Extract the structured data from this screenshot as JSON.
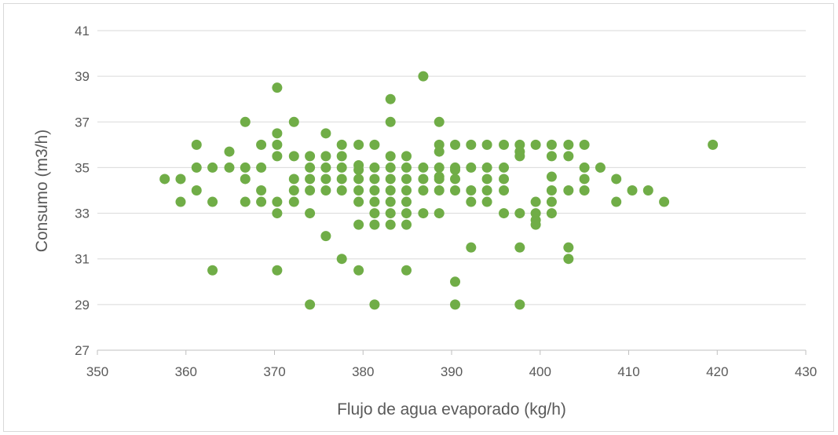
{
  "chart_data": {
    "type": "scatter",
    "title": "",
    "xlabel": "Flujo de agua evaporado  (kg/h)",
    "ylabel": "Consumo  (m3/h)",
    "xlim": [
      350,
      430
    ],
    "ylim": [
      27,
      41
    ],
    "x_ticks": [
      350,
      360,
      370,
      380,
      390,
      400,
      410,
      420,
      430
    ],
    "y_ticks": [
      27,
      29,
      31,
      33,
      35,
      37,
      39,
      41
    ],
    "grid": "horizontal",
    "legend": "none",
    "marker_color": "#70AD47",
    "points": [
      [
        357.6,
        34.5
      ],
      [
        359.4,
        34.5
      ],
      [
        359.4,
        33.5
      ],
      [
        361.2,
        36.0
      ],
      [
        361.2,
        35.0
      ],
      [
        361.2,
        34.0
      ],
      [
        363.0,
        35.0
      ],
      [
        363.0,
        33.5
      ],
      [
        363.0,
        30.5
      ],
      [
        364.9,
        35.7
      ],
      [
        364.9,
        35.0
      ],
      [
        366.7,
        37.0
      ],
      [
        366.7,
        35.0
      ],
      [
        366.7,
        34.5
      ],
      [
        366.7,
        33.5
      ],
      [
        368.5,
        36.0
      ],
      [
        368.5,
        35.0
      ],
      [
        368.5,
        34.0
      ],
      [
        368.5,
        33.5
      ],
      [
        370.3,
        38.5
      ],
      [
        370.3,
        36.5
      ],
      [
        370.3,
        36.0
      ],
      [
        370.3,
        35.5
      ],
      [
        370.3,
        33.5
      ],
      [
        370.3,
        33.0
      ],
      [
        370.3,
        30.5
      ],
      [
        372.2,
        37.0
      ],
      [
        372.2,
        35.5
      ],
      [
        372.2,
        34.5
      ],
      [
        372.2,
        34.0
      ],
      [
        372.2,
        33.5
      ],
      [
        374.0,
        35.5
      ],
      [
        374.0,
        35.0
      ],
      [
        374.0,
        34.5
      ],
      [
        374.0,
        34.0
      ],
      [
        374.0,
        33.0
      ],
      [
        374.0,
        29.0
      ],
      [
        375.8,
        36.5
      ],
      [
        375.8,
        35.5
      ],
      [
        375.8,
        35.0
      ],
      [
        375.8,
        34.5
      ],
      [
        375.8,
        34.0
      ],
      [
        375.8,
        32.0
      ],
      [
        377.6,
        36.0
      ],
      [
        377.6,
        35.5
      ],
      [
        377.6,
        35.0
      ],
      [
        377.6,
        34.5
      ],
      [
        377.6,
        34.0
      ],
      [
        377.6,
        31.0
      ],
      [
        379.5,
        36.0
      ],
      [
        379.5,
        35.1
      ],
      [
        379.5,
        34.9
      ],
      [
        379.5,
        34.5
      ],
      [
        379.5,
        34.0
      ],
      [
        379.5,
        33.5
      ],
      [
        379.5,
        32.5
      ],
      [
        379.5,
        30.5
      ],
      [
        381.3,
        36.0
      ],
      [
        381.3,
        35.0
      ],
      [
        381.3,
        34.5
      ],
      [
        381.3,
        34.0
      ],
      [
        381.3,
        33.5
      ],
      [
        381.3,
        33.0
      ],
      [
        381.3,
        32.5
      ],
      [
        381.3,
        29.0
      ],
      [
        383.1,
        38.0
      ],
      [
        383.1,
        37.0
      ],
      [
        383.1,
        35.5
      ],
      [
        383.1,
        35.0
      ],
      [
        383.1,
        34.5
      ],
      [
        383.1,
        34.0
      ],
      [
        383.1,
        33.5
      ],
      [
        383.1,
        33.0
      ],
      [
        383.1,
        32.5
      ],
      [
        384.9,
        35.5
      ],
      [
        384.9,
        35.0
      ],
      [
        384.9,
        34.5
      ],
      [
        384.9,
        34.0
      ],
      [
        384.9,
        33.5
      ],
      [
        384.9,
        33.0
      ],
      [
        384.9,
        32.5
      ],
      [
        384.9,
        30.5
      ],
      [
        386.8,
        39.0
      ],
      [
        386.8,
        35.0
      ],
      [
        386.8,
        34.5
      ],
      [
        386.8,
        34.0
      ],
      [
        386.8,
        33.0
      ],
      [
        388.6,
        37.0
      ],
      [
        388.6,
        36.0
      ],
      [
        388.6,
        35.7
      ],
      [
        388.6,
        35.0
      ],
      [
        388.6,
        34.6
      ],
      [
        388.6,
        34.5
      ],
      [
        388.6,
        34.0
      ],
      [
        388.6,
        33.0
      ],
      [
        390.4,
        36.0
      ],
      [
        390.4,
        35.0
      ],
      [
        390.4,
        34.9
      ],
      [
        390.4,
        34.5
      ],
      [
        390.4,
        34.0
      ],
      [
        390.4,
        30.0
      ],
      [
        390.4,
        29.0
      ],
      [
        392.2,
        36.0
      ],
      [
        392.2,
        35.0
      ],
      [
        392.2,
        34.0
      ],
      [
        392.2,
        33.5
      ],
      [
        392.2,
        31.5
      ],
      [
        394.0,
        36.0
      ],
      [
        394.0,
        35.0
      ],
      [
        394.0,
        34.5
      ],
      [
        394.0,
        34.0
      ],
      [
        394.0,
        33.5
      ],
      [
        395.9,
        36.0
      ],
      [
        395.9,
        35.0
      ],
      [
        395.9,
        34.5
      ],
      [
        395.9,
        34.0
      ],
      [
        395.9,
        33.0
      ],
      [
        397.7,
        36.0
      ],
      [
        397.7,
        35.7
      ],
      [
        397.7,
        35.5
      ],
      [
        397.7,
        33.0
      ],
      [
        397.7,
        31.5
      ],
      [
        397.7,
        29.0
      ],
      [
        399.5,
        36.0
      ],
      [
        399.5,
        33.5
      ],
      [
        399.5,
        33.0
      ],
      [
        399.5,
        32.7
      ],
      [
        399.5,
        32.5
      ],
      [
        401.3,
        36.0
      ],
      [
        401.3,
        35.5
      ],
      [
        401.3,
        34.6
      ],
      [
        401.3,
        34.0
      ],
      [
        401.3,
        33.5
      ],
      [
        401.3,
        33.0
      ],
      [
        403.2,
        36.0
      ],
      [
        403.2,
        35.5
      ],
      [
        403.2,
        34.0
      ],
      [
        403.2,
        31.5
      ],
      [
        403.2,
        31.0
      ],
      [
        405.0,
        36.0
      ],
      [
        405.0,
        35.0
      ],
      [
        405.0,
        34.5
      ],
      [
        405.0,
        34.0
      ],
      [
        406.8,
        35.0
      ],
      [
        408.6,
        34.5
      ],
      [
        408.6,
        33.5
      ],
      [
        410.4,
        34.0
      ],
      [
        412.2,
        34.0
      ],
      [
        414.0,
        33.5
      ],
      [
        419.5,
        36.0
      ]
    ]
  }
}
